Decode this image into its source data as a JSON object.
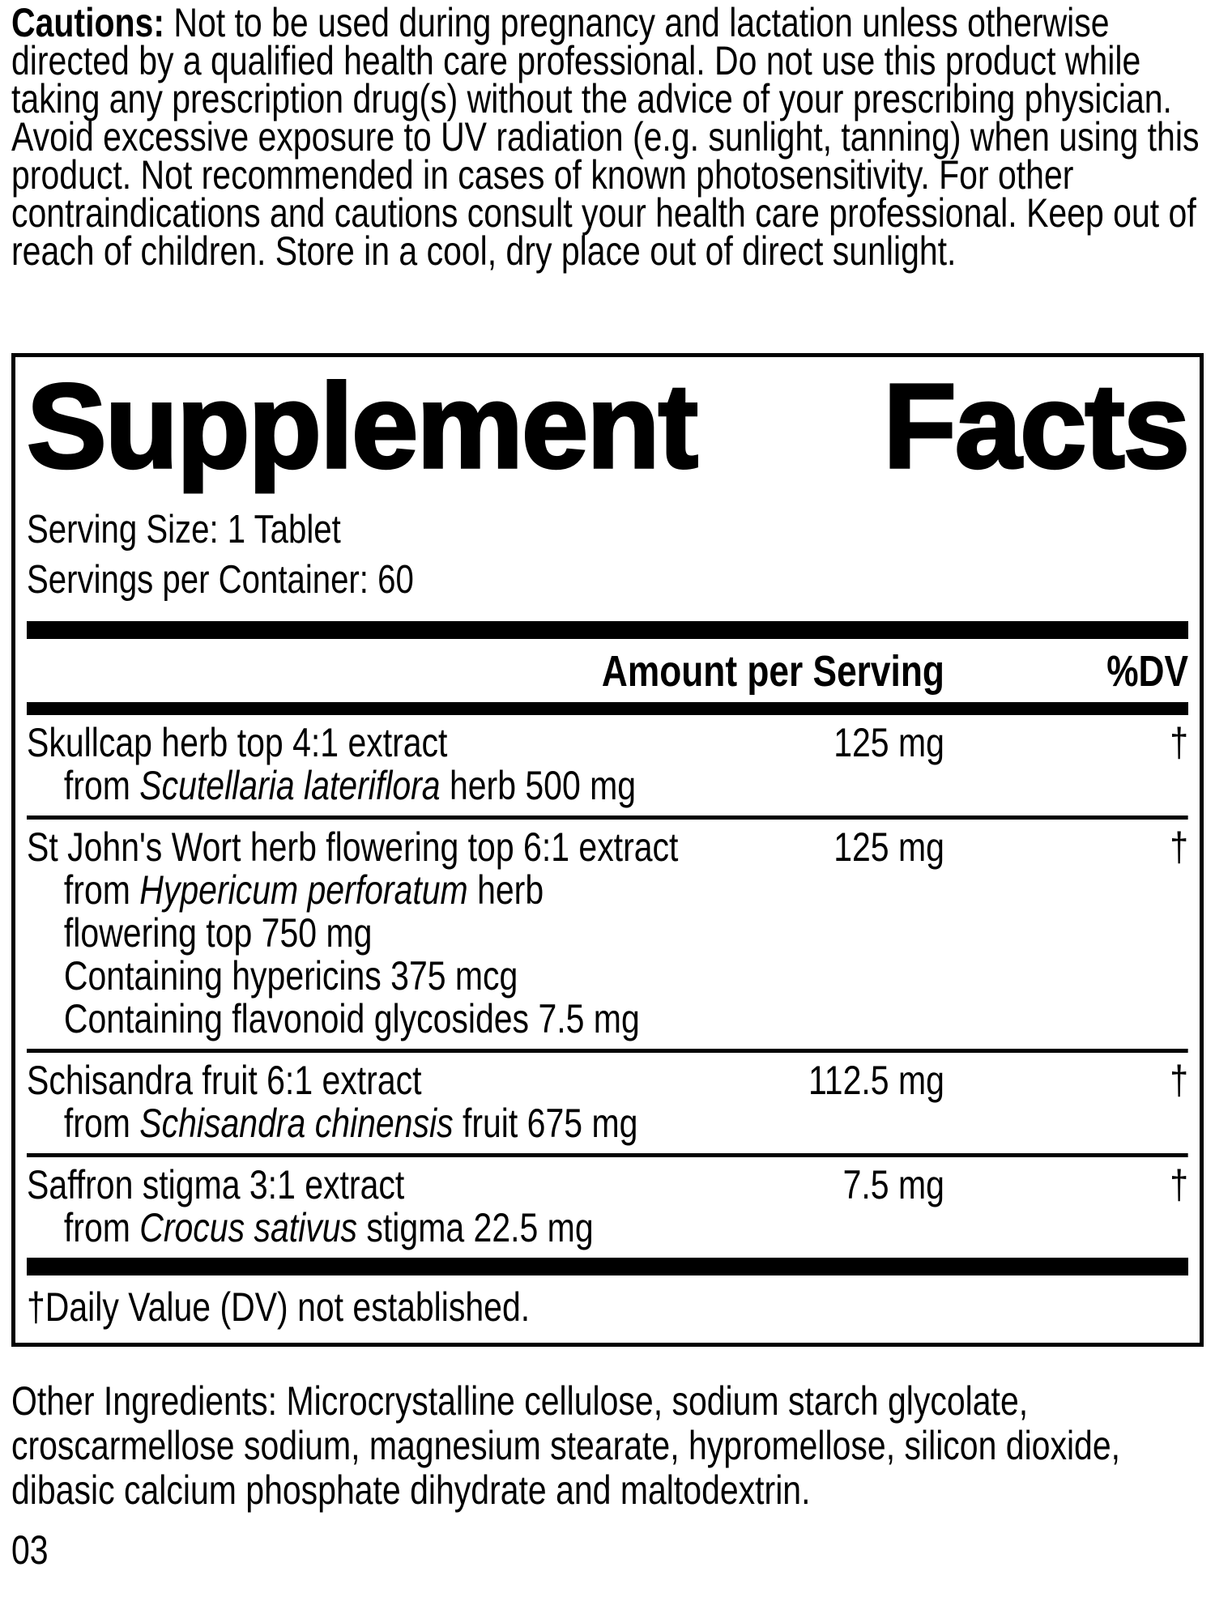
{
  "cautions": {
    "label": "Cautions:",
    "text": " Not to be used during pregnancy and lactation unless otherwise directed by a qualified health care professional. Do not use this product while taking any prescription drug(s) without the advice of your prescribing physician. Avoid excessive exposure to UV radiation (e.g. sunlight, tanning) when using this product. Not recommended in cases of known photosensitivity. For other contraindications and cautions consult your health care professional. Keep out of reach of children. Store in a cool, dry place out of direct sunlight."
  },
  "panel": {
    "title": "Supplement Facts",
    "title_words": [
      "Supplement",
      "Facts"
    ],
    "serving_size": "Serving Size: 1 Tablet",
    "servings_per_container": "Servings per Container: 60"
  },
  "table": {
    "header": {
      "amount": "Amount per Serving",
      "dv": "%DV"
    },
    "rows": [
      {
        "name": "Skullcap herb top 4:1 extract",
        "amount": "125 mg",
        "dv": "†",
        "details": [
          [
            {
              "text": "from "
            },
            {
              "text": "Scutellaria lateriflora",
              "italic": true
            },
            {
              "text": " herb 500 mg"
            }
          ]
        ]
      },
      {
        "name": "St John's Wort herb flowering top 6:1 extract",
        "amount": "125 mg",
        "dv": "†",
        "details": [
          [
            {
              "text": "from "
            },
            {
              "text": "Hypericum perforatum",
              "italic": true
            },
            {
              "text": " herb"
            }
          ],
          [
            {
              "text": "flowering top 750 mg"
            }
          ],
          [
            {
              "text": "Containing hypericins 375 mcg"
            }
          ],
          [
            {
              "text": "Containing flavonoid glycosides 7.5 mg"
            }
          ]
        ]
      },
      {
        "name": "Schisandra fruit 6:1 extract",
        "amount": "112.5 mg",
        "dv": "†",
        "details": [
          [
            {
              "text": "from "
            },
            {
              "text": "Schisandra chinensis",
              "italic": true
            },
            {
              "text": " fruit 675 mg"
            }
          ]
        ]
      },
      {
        "name": "Saffron stigma 3:1 extract",
        "amount": "7.5 mg",
        "dv": "†",
        "details": [
          [
            {
              "text": "from "
            },
            {
              "text": "Crocus sativus",
              "italic": true
            },
            {
              "text": " stigma 22.5 mg"
            }
          ]
        ]
      }
    ],
    "footnote": "†Daily Value (DV) not established."
  },
  "other_ingredients": "Other Ingredients: Microcrystalline cellulose, sodium starch glycolate, croscarmellose sodium, magnesium stearate, hypromellose, silicon dioxide, dibasic calcium phosphate dihydrate and maltodextrin.",
  "page_number": "03",
  "colors": {
    "text": "#000000",
    "background": "#ffffff",
    "rule": "#000000"
  }
}
